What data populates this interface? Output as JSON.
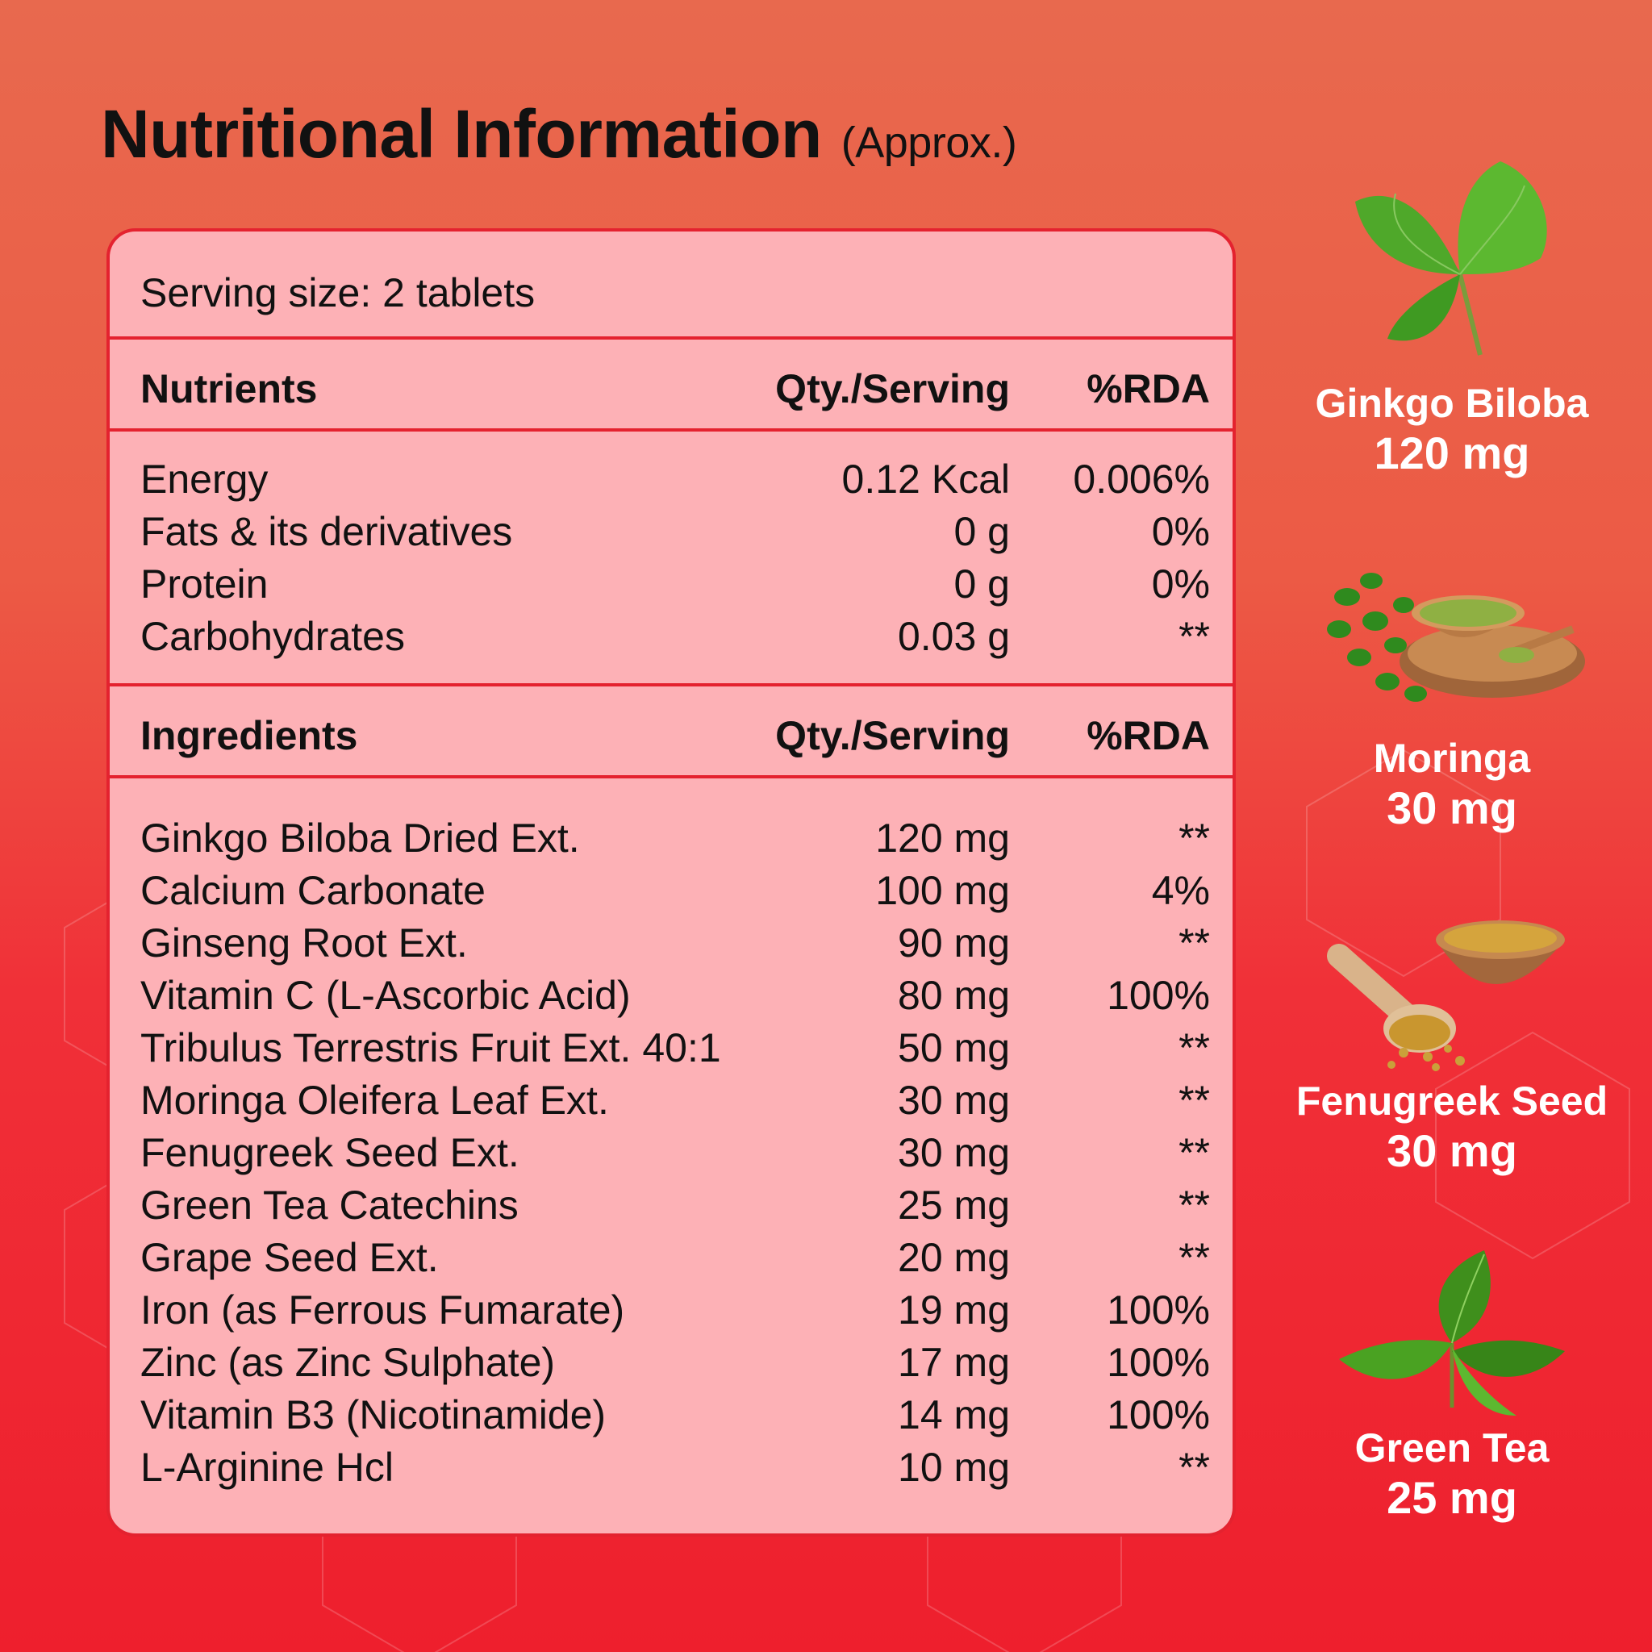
{
  "title": "Nutritional Information",
  "title_sub": "(Approx.)",
  "serving": "Serving size: 2 tablets",
  "nutrients_header": {
    "name": "Nutrients",
    "qty": "Qty./Serving",
    "rda": "%RDA"
  },
  "nutrients": [
    {
      "name": "Energy",
      "qty": "0.12 Kcal",
      "rda": "0.006%"
    },
    {
      "name": "Fats & its derivatives",
      "qty": "0 g",
      "rda": "0%"
    },
    {
      "name": "Protein",
      "qty": "0 g",
      "rda": "0%"
    },
    {
      "name": "Carbohydrates",
      "qty": "0.03 g",
      "rda": "**"
    }
  ],
  "ingredients_header": {
    "name": "Ingredients",
    "qty": "Qty./Serving",
    "rda": "%RDA"
  },
  "ingredients": [
    {
      "name": "Ginkgo Biloba Dried Ext.",
      "qty": "120 mg",
      "rda": "**"
    },
    {
      "name": "Calcium Carbonate",
      "qty": "100 mg",
      "rda": "4%"
    },
    {
      "name": "Ginseng Root Ext.",
      "qty": "90 mg",
      "rda": "**"
    },
    {
      "name": "Vitamin C (L-Ascorbic Acid)",
      "qty": "80 mg",
      "rda": "100%"
    },
    {
      "name": "Tribulus Terrestris Fruit Ext. 40:1",
      "qty": "50 mg",
      "rda": "**"
    },
    {
      "name": "Moringa Oleifera Leaf Ext.",
      "qty": "30 mg",
      "rda": "**"
    },
    {
      "name": "Fenugreek Seed Ext.",
      "qty": "30 mg",
      "rda": "**"
    },
    {
      "name": "Green Tea Catechins",
      "qty": "25 mg",
      "rda": "**"
    },
    {
      "name": "Grape Seed Ext.",
      "qty": "20 mg",
      "rda": "**"
    },
    {
      "name": "Iron (as Ferrous Fumarate)",
      "qty": "19 mg",
      "rda": "100%"
    },
    {
      "name": "Zinc (as Zinc Sulphate)",
      "qty": "17 mg",
      "rda": "100%"
    },
    {
      "name": "Vitamin B3 (Nicotinamide)",
      "qty": "14 mg",
      "rda": "100%"
    },
    {
      "name": "L-Arginine Hcl",
      "qty": "10 mg",
      "rda": "**"
    }
  ],
  "highlights": [
    {
      "name": "Ginkgo Biloba",
      "qty": "120 mg",
      "icon": "ginkgo-leaf-icon"
    },
    {
      "name": "Moringa",
      "qty": "30 mg",
      "icon": "moringa-bowl-icon"
    },
    {
      "name": "Fenugreek Seed",
      "qty": "30 mg",
      "icon": "fenugreek-bowl-icon"
    },
    {
      "name": "Green Tea",
      "qty": "25 mg",
      "icon": "green-tea-leaf-icon"
    }
  ],
  "colors": {
    "card": "#fdb1b6",
    "border": "#e4222f",
    "text": "#111111"
  }
}
